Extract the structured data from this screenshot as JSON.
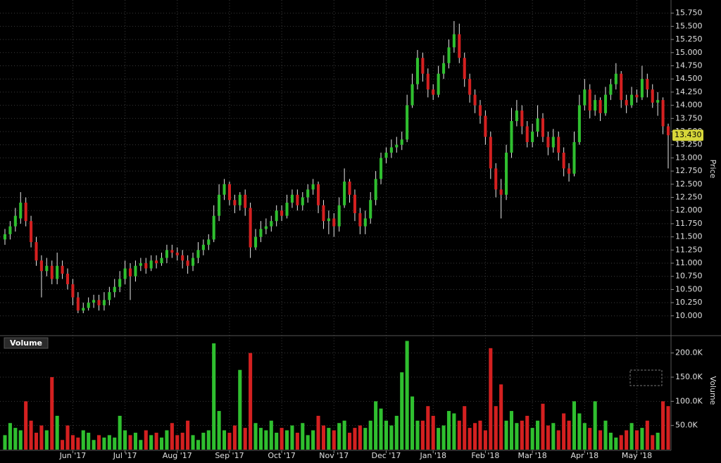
{
  "chart_data": [
    {
      "type": "candlestick",
      "axis_label": "Price",
      "up_color": "#2fbf2f",
      "down_color": "#d42020",
      "wick_color": "#e8e8e8",
      "grid": true,
      "last_price": {
        "value": 13.43,
        "label": "13.430"
      },
      "ylim": [
        9.65,
        16.0
      ],
      "yticks": [
        {
          "value": 10,
          "label": "10.000"
        },
        {
          "value": 10.25,
          "label": "10.250"
        },
        {
          "value": 10.5,
          "label": "10.500"
        },
        {
          "value": 10.75,
          "label": "10.750"
        },
        {
          "value": 11,
          "label": "11.000"
        },
        {
          "value": 11.25,
          "label": "11.250"
        },
        {
          "value": 11.5,
          "label": "11.500"
        },
        {
          "value": 11.75,
          "label": "11.750"
        },
        {
          "value": 12,
          "label": "12.000"
        },
        {
          "value": 12.25,
          "label": "12.250"
        },
        {
          "value": 12.5,
          "label": "12.500"
        },
        {
          "value": 12.75,
          "label": "12.750"
        },
        {
          "value": 13,
          "label": "13.000"
        },
        {
          "value": 13.25,
          "label": "13.250"
        },
        {
          "value": 13.5,
          "label": "13.500"
        },
        {
          "value": 13.75,
          "label": "13.750"
        },
        {
          "value": 14,
          "label": "14.000"
        },
        {
          "value": 14.25,
          "label": "14.250"
        },
        {
          "value": 14.5,
          "label": "14.500"
        },
        {
          "value": 14.75,
          "label": "14.750"
        },
        {
          "value": 15,
          "label": "15.000"
        },
        {
          "value": 15.25,
          "label": "15.250"
        },
        {
          "value": 15.5,
          "label": "15.500"
        },
        {
          "value": 15.75,
          "label": "15.750"
        }
      ],
      "open": [
        11.45,
        11.55,
        11.7,
        11.85,
        12.15,
        11.8,
        11.4,
        11.05,
        10.85,
        10.95,
        10.7,
        10.95,
        10.8,
        10.6,
        10.35,
        10.1,
        10.15,
        10.25,
        10.3,
        10.2,
        10.3,
        10.45,
        10.55,
        10.7,
        10.9,
        10.75,
        10.95,
        11.0,
        10.9,
        11.05,
        11.0,
        11.1,
        11.25,
        11.2,
        11.15,
        11.05,
        10.95,
        11.1,
        11.25,
        11.35,
        11.45,
        11.9,
        12.3,
        12.5,
        12.2,
        12.1,
        12.3,
        12.05,
        11.3,
        11.5,
        11.65,
        11.7,
        11.8,
        12.0,
        11.9,
        12.15,
        12.3,
        12.1,
        12.25,
        12.4,
        12.5,
        12.1,
        11.8,
        11.85,
        11.7,
        12.1,
        12.55,
        12.3,
        11.95,
        11.7,
        11.85,
        12.2,
        12.6,
        13.0,
        13.1,
        13.2,
        13.25,
        13.35,
        14.0,
        14.4,
        14.9,
        14.6,
        14.3,
        14.2,
        14.6,
        14.8,
        15.1,
        15.35,
        14.9,
        14.5,
        14.2,
        14.0,
        13.8,
        13.4,
        12.8,
        12.4,
        12.3,
        13.1,
        13.7,
        13.9,
        13.6,
        13.3,
        13.5,
        13.75,
        13.4,
        13.2,
        13.4,
        13.1,
        12.8,
        12.7,
        13.3,
        14.0,
        14.3,
        13.9,
        14.1,
        13.85,
        14.2,
        14.4,
        14.6,
        14.1,
        14.0,
        14.2,
        14.15,
        14.5,
        14.3,
        14.05,
        14.1,
        13.6
      ],
      "high": [
        11.65,
        11.8,
        12.05,
        12.35,
        12.25,
        11.9,
        11.5,
        11.15,
        11.1,
        11.05,
        11.2,
        11.05,
        10.9,
        10.7,
        10.45,
        10.25,
        10.35,
        10.4,
        10.4,
        10.45,
        10.55,
        10.7,
        10.85,
        11.05,
        11.0,
        11.05,
        11.1,
        11.1,
        11.15,
        11.15,
        11.2,
        11.35,
        11.35,
        11.3,
        11.25,
        11.15,
        11.2,
        11.4,
        11.45,
        11.55,
        12.1,
        12.5,
        12.6,
        12.55,
        12.3,
        12.35,
        12.4,
        12.15,
        11.65,
        11.8,
        11.85,
        11.9,
        12.1,
        12.1,
        12.3,
        12.4,
        12.4,
        12.35,
        12.5,
        12.6,
        12.55,
        12.2,
        12.0,
        11.95,
        12.25,
        12.8,
        12.6,
        12.4,
        12.05,
        12.0,
        12.35,
        12.75,
        13.1,
        13.2,
        13.35,
        13.4,
        13.5,
        14.2,
        14.6,
        15.05,
        15.0,
        14.7,
        14.4,
        14.75,
        14.95,
        15.25,
        15.6,
        15.55,
        15.0,
        14.6,
        14.3,
        14.1,
        13.9,
        13.5,
        12.9,
        12.6,
        13.25,
        13.95,
        14.1,
        14.0,
        13.7,
        13.65,
        14.0,
        13.85,
        13.5,
        13.55,
        13.5,
        13.2,
        12.9,
        13.5,
        14.2,
        14.5,
        14.4,
        14.2,
        14.15,
        14.35,
        14.5,
        14.8,
        14.65,
        14.2,
        14.35,
        14.3,
        14.75,
        14.6,
        14.4,
        14.25,
        14.15,
        13.65
      ],
      "low": [
        11.35,
        11.45,
        11.6,
        11.75,
        11.7,
        11.3,
        10.95,
        10.35,
        10.75,
        10.6,
        10.6,
        10.7,
        10.5,
        10.2,
        10.05,
        10.05,
        10.1,
        10.15,
        10.1,
        10.1,
        10.2,
        10.35,
        10.45,
        10.6,
        10.3,
        10.65,
        10.85,
        10.8,
        10.85,
        10.9,
        10.95,
        11.0,
        11.1,
        11.05,
        10.9,
        10.8,
        10.85,
        11.0,
        11.15,
        11.25,
        11.4,
        11.8,
        12.2,
        12.1,
        11.95,
        12.0,
        11.9,
        11.1,
        11.25,
        11.4,
        11.55,
        11.6,
        11.7,
        11.8,
        11.85,
        12.05,
        12.0,
        12.0,
        12.15,
        12.3,
        11.95,
        11.65,
        11.55,
        11.5,
        11.6,
        12.05,
        12.15,
        11.8,
        11.55,
        11.55,
        11.75,
        12.1,
        12.5,
        12.9,
        13.0,
        13.1,
        13.15,
        13.3,
        13.95,
        14.3,
        14.45,
        14.15,
        14.1,
        14.15,
        14.5,
        14.7,
        15.0,
        14.8,
        14.35,
        14.05,
        13.85,
        13.65,
        13.25,
        12.6,
        12.25,
        11.85,
        12.2,
        13.0,
        13.6,
        13.45,
        13.2,
        13.2,
        13.4,
        13.3,
        13.05,
        13.1,
        12.95,
        12.65,
        12.55,
        12.65,
        13.25,
        13.9,
        13.75,
        13.8,
        13.7,
        13.8,
        14.1,
        14.3,
        13.95,
        13.85,
        13.95,
        14.05,
        14.1,
        14.15,
        13.95,
        13.8,
        13.45,
        12.8
      ],
      "close": [
        11.55,
        11.7,
        11.9,
        12.15,
        11.8,
        11.4,
        11.05,
        10.85,
        10.95,
        10.7,
        10.95,
        10.8,
        10.6,
        10.35,
        10.1,
        10.15,
        10.25,
        10.3,
        10.2,
        10.3,
        10.45,
        10.55,
        10.7,
        10.9,
        10.75,
        10.95,
        11.0,
        10.9,
        11.05,
        11.0,
        11.1,
        11.25,
        11.2,
        11.15,
        11.05,
        10.95,
        11.1,
        11.25,
        11.35,
        11.45,
        11.9,
        12.3,
        12.5,
        12.2,
        12.1,
        12.3,
        12.05,
        11.3,
        11.5,
        11.65,
        11.7,
        11.8,
        12.0,
        11.9,
        12.15,
        12.3,
        12.1,
        12.25,
        12.4,
        12.5,
        12.1,
        11.8,
        11.85,
        11.7,
        12.1,
        12.55,
        12.3,
        11.95,
        11.7,
        11.85,
        12.2,
        12.6,
        13.0,
        13.1,
        13.2,
        13.25,
        13.35,
        14.0,
        14.4,
        14.9,
        14.6,
        14.3,
        14.2,
        14.6,
        14.8,
        15.1,
        15.35,
        14.9,
        14.5,
        14.2,
        14.0,
        13.8,
        13.4,
        12.8,
        12.4,
        12.3,
        13.1,
        13.7,
        13.9,
        13.6,
        13.3,
        13.5,
        13.75,
        13.4,
        13.2,
        13.4,
        13.1,
        12.8,
        12.7,
        13.3,
        14.0,
        14.3,
        13.9,
        14.1,
        13.85,
        14.2,
        14.4,
        14.6,
        14.1,
        14.0,
        14.2,
        14.15,
        14.5,
        14.3,
        14.05,
        14.1,
        13.6,
        13.43
      ],
      "xticks": [
        {
          "value": 13,
          "label": "Jun '17"
        },
        {
          "value": 23,
          "label": "Jul '17"
        },
        {
          "value": 33,
          "label": "Aug '17"
        },
        {
          "value": 43,
          "label": "Sep '17"
        },
        {
          "value": 53,
          "label": "Oct '17"
        },
        {
          "value": 63,
          "label": "Nov '17"
        },
        {
          "value": 73,
          "label": "Dec '17"
        },
        {
          "value": 82,
          "label": "Jan '18"
        },
        {
          "value": 92,
          "label": "Feb '18"
        },
        {
          "value": 101,
          "label": "Mar '18"
        },
        {
          "value": 111,
          "label": "Apr '18"
        },
        {
          "value": 121,
          "label": "May '18"
        }
      ]
    },
    {
      "type": "volume",
      "title": "Volume",
      "axis_label": "Volume",
      "grid": true,
      "ylim": [
        0,
        233000
      ],
      "yticks": [
        {
          "value": 50000,
          "label": "50.0K"
        },
        {
          "value": 100000,
          "label": "100.0K"
        },
        {
          "value": 150000,
          "label": "150.0K"
        },
        {
          "value": 200000,
          "label": "200.0K"
        }
      ],
      "values": [
        30000,
        55000,
        45000,
        40000,
        100000,
        60000,
        35000,
        50000,
        40000,
        150000,
        70000,
        20000,
        50000,
        30000,
        25000,
        40000,
        35000,
        20000,
        30000,
        25000,
        30000,
        25000,
        70000,
        40000,
        30000,
        35000,
        20000,
        40000,
        30000,
        35000,
        25000,
        40000,
        55000,
        30000,
        35000,
        60000,
        30000,
        20000,
        35000,
        40000,
        220000,
        80000,
        40000,
        35000,
        50000,
        165000,
        45000,
        200000,
        55000,
        45000,
        40000,
        60000,
        35000,
        45000,
        40000,
        50000,
        35000,
        55000,
        30000,
        40000,
        70000,
        50000,
        45000,
        40000,
        55000,
        60000,
        35000,
        45000,
        50000,
        45000,
        60000,
        100000,
        85000,
        60000,
        50000,
        70000,
        160000,
        225000,
        110000,
        60000,
        60000,
        90000,
        70000,
        45000,
        50000,
        80000,
        75000,
        60000,
        90000,
        45000,
        55000,
        60000,
        40000,
        210000,
        90000,
        135000,
        60000,
        80000,
        55000,
        60000,
        70000,
        45000,
        60000,
        95000,
        50000,
        55000,
        40000,
        75000,
        60000,
        100000,
        75000,
        55000,
        45000,
        100000,
        40000,
        60000,
        35000,
        25000,
        30000,
        40000,
        55000,
        40000,
        45000,
        60000,
        30000,
        35000,
        100000,
        90000
      ]
    }
  ]
}
